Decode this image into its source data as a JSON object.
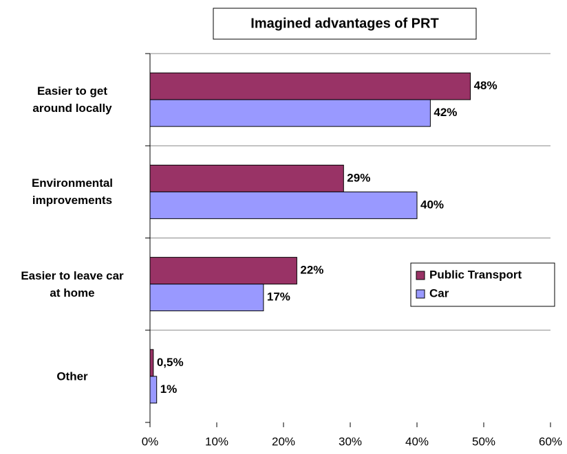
{
  "chart_data": {
    "type": "hbar",
    "title": "Imagined advantages of PRT",
    "categories": [
      "Easier to get\naround locally",
      "Environmental\nimprovements",
      "Easier to leave car\nat home",
      "Other"
    ],
    "series": [
      {
        "name": "Public Transport",
        "color": "#993366",
        "values": [
          48,
          29,
          22,
          0.5
        ],
        "value_labels": [
          "48%",
          "29%",
          "22%",
          "0,5%"
        ]
      },
      {
        "name": "Car",
        "color": "#9999ff",
        "values": [
          42,
          40,
          17,
          1
        ],
        "value_labels": [
          "42%",
          "40%",
          "17%",
          "1%"
        ]
      }
    ],
    "xlim": [
      0,
      60
    ],
    "xticks": [
      {
        "value": 0,
        "label": "0%"
      },
      {
        "value": 10,
        "label": "10%"
      },
      {
        "value": 20,
        "label": "20%"
      },
      {
        "value": 30,
        "label": "30%"
      },
      {
        "value": 40,
        "label": "40%"
      },
      {
        "value": 50,
        "label": "50%"
      },
      {
        "value": 60,
        "label": "60%"
      }
    ],
    "legend": "right"
  }
}
